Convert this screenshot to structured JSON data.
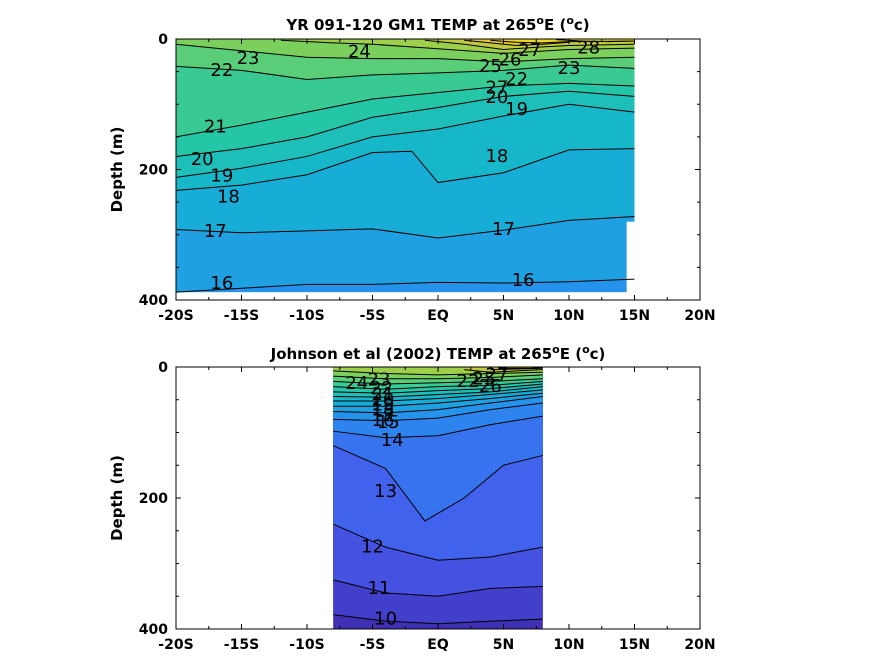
{
  "chart_data": [
    {
      "type": "heatmap",
      "title": "YR 091-120 GM1 TEMP at 265",
      "title_sup_deg": "o",
      "title_suffix": "E (",
      "title_sup_unit": "o",
      "title_end": "c)",
      "ylabel": "Depth (m)",
      "xlim": [
        -20,
        20
      ],
      "ylim": [
        0,
        400
      ],
      "y_reversed": true,
      "x_ticks": [
        -20,
        -15,
        -10,
        -5,
        0,
        5,
        10,
        15,
        20
      ],
      "x_tick_labels": [
        "-20S",
        "-15S",
        "-10S",
        "-5S",
        "EQ",
        "5N",
        "10N",
        "15N",
        "20N"
      ],
      "y_ticks": [
        0,
        200,
        400
      ],
      "y_tick_labels": [
        "0",
        "200",
        "400"
      ],
      "data_x_range": [
        -20,
        15
      ],
      "contour_levels": [
        16,
        17,
        18,
        19,
        20,
        21,
        22,
        23,
        24,
        25,
        26,
        27,
        28
      ],
      "contours": [
        {
          "level": 16,
          "x": [
            -20,
            -15,
            -10,
            -5,
            0,
            5,
            10,
            15
          ],
          "depth": [
            388,
            382,
            376,
            376,
            373,
            374,
            372,
            368
          ]
        },
        {
          "level": 17,
          "x": [
            -20,
            -15,
            -10,
            -5,
            0,
            5,
            10,
            15
          ],
          "depth": [
            292,
            297,
            294,
            291,
            305,
            293,
            278,
            272
          ]
        },
        {
          "level": 18,
          "x": [
            -20,
            -15,
            -10,
            -5,
            -2,
            0,
            5,
            10,
            15
          ],
          "depth": [
            232,
            224,
            208,
            174,
            172,
            220,
            205,
            170,
            168
          ]
        },
        {
          "level": 19,
          "x": [
            -20,
            -15,
            -10,
            -5,
            0,
            5,
            10,
            15
          ],
          "depth": [
            212,
            198,
            180,
            150,
            138,
            118,
            100,
            112
          ]
        },
        {
          "level": 20,
          "x": [
            -20,
            -15,
            -10,
            -5,
            0,
            5,
            10,
            15
          ],
          "depth": [
            180,
            168,
            150,
            120,
            105,
            88,
            80,
            88
          ]
        },
        {
          "level": 21,
          "x": [
            -20,
            -15,
            -10,
            -5,
            0,
            5,
            10,
            15
          ],
          "depth": [
            150,
            132,
            112,
            92,
            82,
            72,
            68,
            72
          ]
        },
        {
          "level": 22,
          "x": [
            -20,
            -15,
            -10,
            -5,
            0,
            5,
            10,
            15
          ],
          "depth": [
            42,
            48,
            62,
            55,
            52,
            48,
            40,
            45
          ]
        },
        {
          "level": 23,
          "x": [
            -20,
            -15,
            -10,
            -5,
            0,
            5,
            10,
            15
          ],
          "depth": [
            8,
            18,
            28,
            30,
            30,
            35,
            30,
            28
          ]
        },
        {
          "level": 24,
          "x": [
            -12,
            -8,
            -5,
            0,
            5,
            10,
            15
          ],
          "depth": [
            2,
            6,
            8,
            15,
            22,
            16,
            14
          ]
        },
        {
          "level": 25,
          "x": [
            -1,
            2,
            5,
            8,
            10,
            15
          ],
          "depth": [
            2,
            8,
            16,
            12,
            10,
            8
          ]
        },
        {
          "level": 26,
          "x": [
            2,
            4,
            6,
            8,
            10
          ],
          "depth": [
            2,
            6,
            10,
            8,
            5
          ]
        },
        {
          "level": 27,
          "x": [
            4,
            6,
            8,
            10,
            15
          ],
          "depth": [
            2,
            5,
            6,
            4,
            3
          ]
        },
        {
          "level": 28,
          "x": [
            9,
            11,
            13,
            15
          ],
          "depth": [
            1,
            3,
            4,
            3
          ]
        }
      ],
      "labels_shown": [
        {
          "text": "23",
          "x": -14.5,
          "depth": 30
        },
        {
          "text": "24",
          "x": -6.0,
          "depth": 20
        },
        {
          "text": "22",
          "x": -16.5,
          "depth": 48
        },
        {
          "text": "25",
          "x": 4.0,
          "depth": 42
        },
        {
          "text": "26",
          "x": 5.5,
          "depth": 32
        },
        {
          "text": "27",
          "x": 7.0,
          "depth": 18
        },
        {
          "text": "28",
          "x": 11.5,
          "depth": 14
        },
        {
          "text": "23",
          "x": 10.0,
          "depth": 45
        },
        {
          "text": "27",
          "x": 4.5,
          "depth": 75
        },
        {
          "text": "22",
          "x": 6.0,
          "depth": 62
        },
        {
          "text": "20",
          "x": 4.5,
          "depth": 90
        },
        {
          "text": "19",
          "x": 6.0,
          "depth": 108
        },
        {
          "text": "21",
          "x": -17.0,
          "depth": 135
        },
        {
          "text": "20",
          "x": -18.0,
          "depth": 185
        },
        {
          "text": "19",
          "x": -16.5,
          "depth": 210
        },
        {
          "text": "18",
          "x": -16.0,
          "depth": 242
        },
        {
          "text": "18",
          "x": 4.5,
          "depth": 180
        },
        {
          "text": "17",
          "x": -17.0,
          "depth": 295
        },
        {
          "text": "17",
          "x": 5.0,
          "depth": 292
        },
        {
          "text": "16",
          "x": -16.5,
          "depth": 375
        },
        {
          "text": "16",
          "x": 6.5,
          "depth": 370
        }
      ]
    },
    {
      "type": "heatmap",
      "title": "Johnson et al (2002) TEMP at 265",
      "title_sup_deg": "o",
      "title_suffix": "E (",
      "title_sup_unit": "o",
      "title_end": "c)",
      "ylabel": "Depth (m)",
      "xlim": [
        -20,
        20
      ],
      "ylim": [
        0,
        400
      ],
      "y_reversed": true,
      "x_ticks": [
        -20,
        -15,
        -10,
        -5,
        0,
        5,
        10,
        15,
        20
      ],
      "x_tick_labels": [
        "-20S",
        "-15S",
        "-10S",
        "-5S",
        "EQ",
        "5N",
        "10N",
        "15N",
        "20N"
      ],
      "y_ticks": [
        0,
        200,
        400
      ],
      "y_tick_labels": [
        "0",
        "200",
        "400"
      ],
      "data_x_range": [
        -8,
        8
      ],
      "contour_levels": [
        10,
        11,
        12,
        13,
        14,
        15,
        16,
        17,
        18,
        19,
        20,
        21,
        22,
        23,
        24,
        25,
        26,
        27
      ],
      "contours": [
        {
          "level": 10,
          "x": [
            -8,
            -4,
            0,
            4,
            8
          ],
          "depth": [
            378,
            388,
            392,
            388,
            385
          ]
        },
        {
          "level": 11,
          "x": [
            -8,
            -4,
            0,
            4,
            8
          ],
          "depth": [
            325,
            345,
            350,
            338,
            335
          ]
        },
        {
          "level": 12,
          "x": [
            -8,
            -4,
            0,
            4,
            8
          ],
          "depth": [
            240,
            275,
            295,
            290,
            275
          ]
        },
        {
          "level": 13,
          "x": [
            -8,
            -4,
            -1,
            2,
            5,
            8
          ],
          "depth": [
            120,
            155,
            235,
            200,
            150,
            135
          ]
        },
        {
          "level": 14,
          "x": [
            -8,
            -4,
            0,
            4,
            8
          ],
          "depth": [
            98,
            108,
            105,
            88,
            75
          ]
        },
        {
          "level": 15,
          "x": [
            -8,
            -4,
            0,
            4,
            8
          ],
          "depth": [
            80,
            82,
            78,
            65,
            55
          ]
        },
        {
          "level": 16,
          "x": [
            -8,
            -4,
            0,
            4,
            8
          ],
          "depth": [
            68,
            70,
            65,
            55,
            45
          ]
        },
        {
          "level": 17,
          "x": [
            -8,
            -4,
            0,
            4,
            8
          ],
          "depth": [
            60,
            60,
            55,
            48,
            40
          ]
        },
        {
          "level": 18,
          "x": [
            -8,
            -4,
            0,
            4,
            8
          ],
          "depth": [
            52,
            52,
            48,
            42,
            35
          ]
        },
        {
          "level": 19,
          "x": [
            -8,
            -4,
            0,
            4,
            8
          ],
          "depth": [
            45,
            46,
            42,
            38,
            30
          ]
        },
        {
          "level": 20,
          "x": [
            -8,
            -4,
            0,
            4,
            8
          ],
          "depth": [
            38,
            40,
            36,
            33,
            26
          ]
        },
        {
          "level": 21,
          "x": [
            -8,
            -4,
            0,
            4,
            8
          ],
          "depth": [
            30,
            34,
            30,
            28,
            22
          ]
        },
        {
          "level": 22,
          "x": [
            -8,
            -4,
            0,
            4,
            8
          ],
          "depth": [
            22,
            26,
            24,
            22,
            18
          ]
        },
        {
          "level": 23,
          "x": [
            -8,
            -4,
            0,
            4,
            8
          ],
          "depth": [
            14,
            18,
            18,
            16,
            12
          ]
        },
        {
          "level": 24,
          "x": [
            -8,
            -4,
            0,
            4,
            8
          ],
          "depth": [
            6,
            10,
            12,
            10,
            8
          ]
        },
        {
          "level": 25,
          "x": [
            2,
            4,
            6,
            8
          ],
          "depth": [
            4,
            8,
            6,
            4
          ]
        },
        {
          "level": 26,
          "x": [
            4,
            6,
            8
          ],
          "depth": [
            4,
            3,
            2
          ]
        },
        {
          "level": 27,
          "x": [
            5,
            7,
            8
          ],
          "depth": [
            2,
            2,
            1
          ]
        }
      ],
      "labels_shown": [
        {
          "text": "24",
          "x": -6.2,
          "depth": 25
        },
        {
          "text": "23",
          "x": -4.5,
          "depth": 20
        },
        {
          "text": "22",
          "x": -4.3,
          "depth": 33
        },
        {
          "text": "21",
          "x": -4.2,
          "depth": 42
        },
        {
          "text": "20",
          "x": -4.2,
          "depth": 50
        },
        {
          "text": "19",
          "x": -4.2,
          "depth": 58
        },
        {
          "text": "18",
          "x": -4.2,
          "depth": 66
        },
        {
          "text": "17",
          "x": -4.2,
          "depth": 74
        },
        {
          "text": "16",
          "x": -4.2,
          "depth": 82
        },
        {
          "text": "15",
          "x": -3.8,
          "depth": 85
        },
        {
          "text": "14",
          "x": -3.5,
          "depth": 112
        },
        {
          "text": "13",
          "x": -4.0,
          "depth": 190
        },
        {
          "text": "12",
          "x": -5.0,
          "depth": 275
        },
        {
          "text": "11",
          "x": -4.5,
          "depth": 338
        },
        {
          "text": "10",
          "x": -4.0,
          "depth": 385
        },
        {
          "text": "22",
          "x": 2.3,
          "depth": 22
        },
        {
          "text": "25",
          "x": 3.5,
          "depth": 18
        },
        {
          "text": "26",
          "x": 4.0,
          "depth": 30
        },
        {
          "text": "27",
          "x": 4.5,
          "depth": 12
        }
      ]
    }
  ]
}
